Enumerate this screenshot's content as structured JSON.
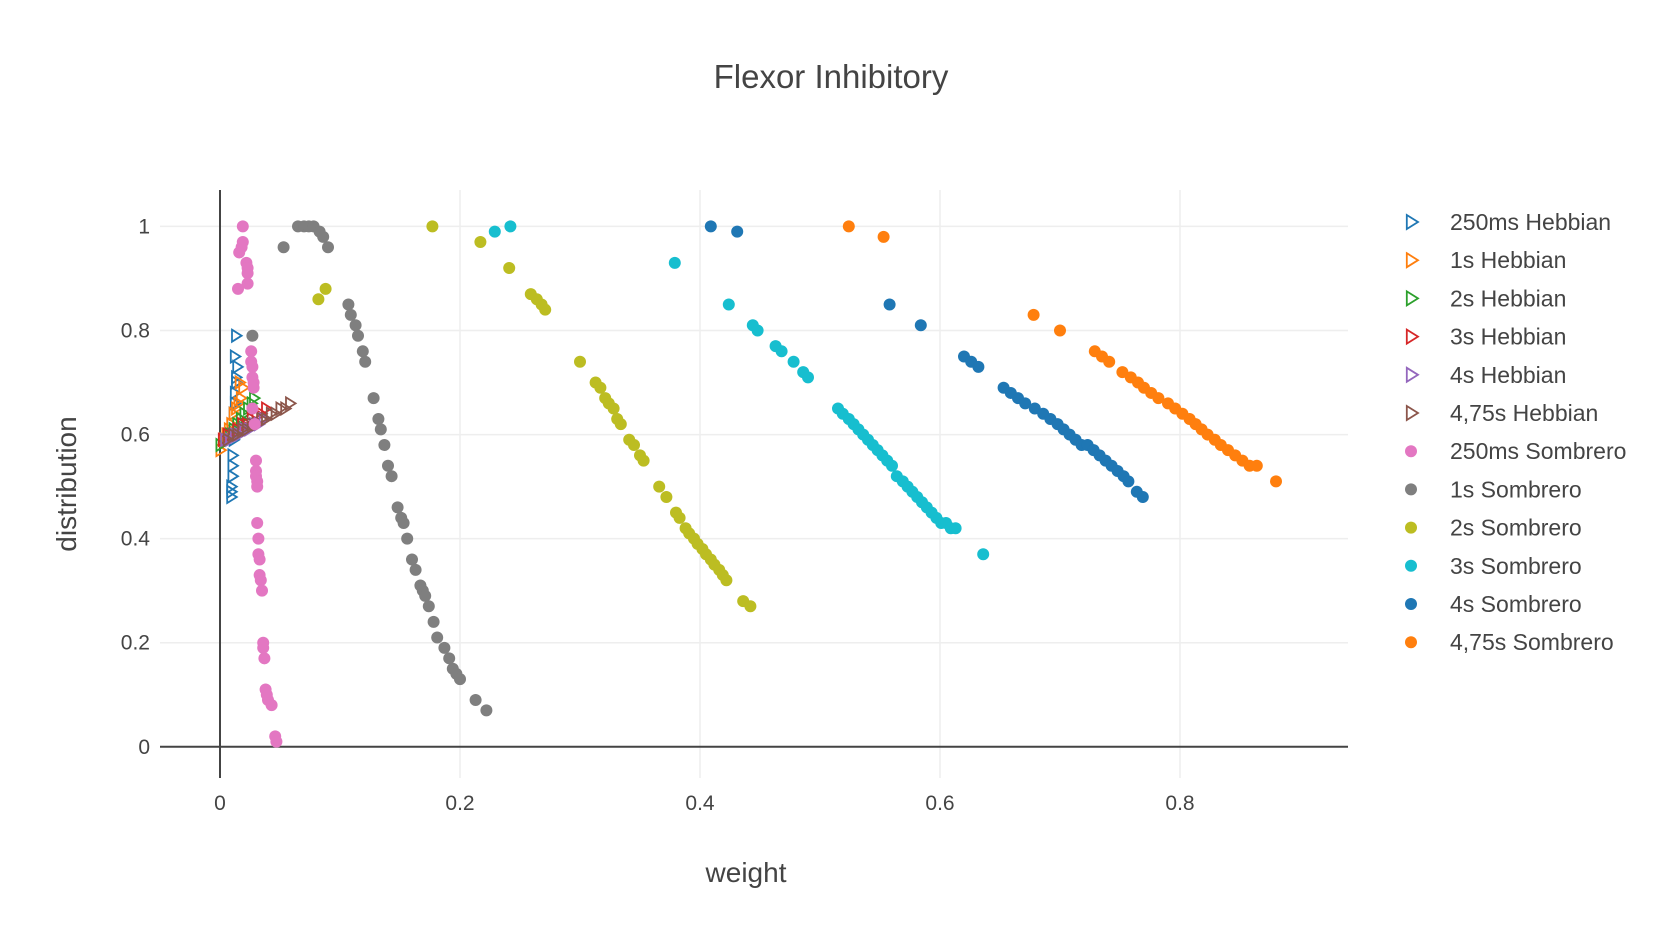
{
  "chart_data": {
    "type": "scatter",
    "title": "Flexor Inhibitory",
    "xlabel": "weight",
    "ylabel": "distribution",
    "xlim": [
      -0.05,
      0.94
    ],
    "ylim": [
      -0.06,
      1.07
    ],
    "xticks": [
      0,
      0.2,
      0.4,
      0.6,
      0.8
    ],
    "xtick_labels": [
      "0",
      "0.2",
      "0.4",
      "0.6",
      "0.8"
    ],
    "yticks": [
      0,
      0.2,
      0.4,
      0.6,
      0.8,
      1
    ],
    "ytick_labels": [
      "0",
      "0.2",
      "0.4",
      "0.6",
      "0.8",
      "1"
    ],
    "grid": true,
    "legend_position": "right",
    "series": [
      {
        "name": "250ms Hebbian",
        "marker": "triangle-right-open",
        "color": "#1f77b4",
        "x": [
          0.013,
          0.012,
          0.014,
          0.013,
          0.013,
          0.012,
          0.012,
          0.011,
          0.011,
          0.011,
          0.01,
          0.01,
          0.01,
          0.009,
          0.009,
          0.009
        ],
        "y": [
          0.79,
          0.75,
          0.73,
          0.71,
          0.7,
          0.68,
          0.66,
          0.64,
          0.61,
          0.59,
          0.56,
          0.54,
          0.52,
          0.5,
          0.49,
          0.48
        ]
      },
      {
        "name": "1s Hebbian",
        "marker": "triangle-right-open",
        "color": "#ff7f0e",
        "x": [
          0.0,
          0.003,
          0.005,
          0.007,
          0.009,
          0.011,
          0.013,
          0.015,
          0.017,
          0.019,
          0.016
        ],
        "y": [
          0.57,
          0.59,
          0.6,
          0.61,
          0.62,
          0.64,
          0.65,
          0.66,
          0.67,
          0.69,
          0.7
        ]
      },
      {
        "name": "2s Hebbian",
        "marker": "triangle-right-open",
        "color": "#2ca02c",
        "x": [
          0.0,
          0.004,
          0.008,
          0.011,
          0.014,
          0.017,
          0.02,
          0.023,
          0.026,
          0.028
        ],
        "y": [
          0.58,
          0.59,
          0.6,
          0.61,
          0.62,
          0.63,
          0.64,
          0.65,
          0.66,
          0.67
        ]
      },
      {
        "name": "3s Hebbian",
        "marker": "triangle-right-open",
        "color": "#d62728",
        "x": [
          0.002,
          0.006,
          0.01,
          0.014,
          0.018,
          0.022,
          0.026,
          0.03,
          0.034,
          0.038
        ],
        "y": [
          0.59,
          0.6,
          0.6,
          0.61,
          0.62,
          0.62,
          0.63,
          0.64,
          0.64,
          0.65
        ]
      },
      {
        "name": "4s Hebbian",
        "marker": "triangle-right-open",
        "color": "#9467bd",
        "x": [
          0.004,
          0.008,
          0.012,
          0.016,
          0.02,
          0.024,
          0.028,
          0.032,
          0.036
        ],
        "y": [
          0.59,
          0.59,
          0.6,
          0.6,
          0.61,
          0.61,
          0.62,
          0.62,
          0.63
        ]
      },
      {
        "name": "4,75s Hebbian",
        "marker": "triangle-right-open",
        "color": "#8c564b",
        "x": [
          0.006,
          0.01,
          0.014,
          0.018,
          0.022,
          0.026,
          0.03,
          0.034,
          0.038,
          0.042,
          0.046,
          0.05,
          0.054,
          0.058
        ],
        "y": [
          0.59,
          0.6,
          0.6,
          0.61,
          0.61,
          0.62,
          0.62,
          0.63,
          0.63,
          0.64,
          0.64,
          0.65,
          0.65,
          0.66
        ]
      },
      {
        "name": "250ms Sombrero",
        "marker": "circle",
        "color": "#e377c2",
        "x": [
          0.019,
          0.019,
          0.018,
          0.016,
          0.022,
          0.023,
          0.023,
          0.023,
          0.015,
          0.026,
          0.026,
          0.027,
          0.027,
          0.028,
          0.028,
          0.027,
          0.029,
          0.03,
          0.03,
          0.03,
          0.031,
          0.031,
          0.031,
          0.032,
          0.032,
          0.033,
          0.033,
          0.034,
          0.035,
          0.036,
          0.036,
          0.037,
          0.038,
          0.039,
          0.04,
          0.043,
          0.046,
          0.047
        ],
        "y": [
          1.0,
          0.97,
          0.96,
          0.95,
          0.93,
          0.92,
          0.91,
          0.89,
          0.88,
          0.76,
          0.74,
          0.73,
          0.71,
          0.7,
          0.69,
          0.65,
          0.62,
          0.55,
          0.53,
          0.52,
          0.51,
          0.5,
          0.43,
          0.4,
          0.37,
          0.36,
          0.33,
          0.32,
          0.3,
          0.2,
          0.19,
          0.17,
          0.11,
          0.1,
          0.09,
          0.08,
          0.02,
          0.01
        ]
      },
      {
        "name": "1s Sombrero",
        "marker": "circle",
        "color": "#7f7f7f",
        "x": [
          0.027,
          0.053,
          0.065,
          0.07,
          0.074,
          0.078,
          0.083,
          0.086,
          0.09,
          0.107,
          0.109,
          0.113,
          0.115,
          0.119,
          0.121,
          0.128,
          0.132,
          0.134,
          0.137,
          0.14,
          0.143,
          0.148,
          0.151,
          0.153,
          0.156,
          0.16,
          0.163,
          0.167,
          0.169,
          0.171,
          0.174,
          0.178,
          0.181,
          0.187,
          0.191,
          0.194,
          0.197,
          0.2,
          0.213,
          0.222
        ],
        "y": [
          0.79,
          0.96,
          1.0,
          1.0,
          1.0,
          1.0,
          0.99,
          0.98,
          0.96,
          0.85,
          0.83,
          0.81,
          0.79,
          0.76,
          0.74,
          0.67,
          0.63,
          0.61,
          0.58,
          0.54,
          0.52,
          0.46,
          0.44,
          0.43,
          0.4,
          0.36,
          0.34,
          0.31,
          0.3,
          0.29,
          0.27,
          0.24,
          0.21,
          0.19,
          0.17,
          0.15,
          0.14,
          0.13,
          0.09,
          0.07
        ]
      },
      {
        "name": "2s Sombrero",
        "marker": "circle",
        "color": "#bcbd22",
        "x": [
          0.177,
          0.217,
          0.241,
          0.082,
          0.088,
          0.259,
          0.264,
          0.268,
          0.271,
          0.3,
          0.313,
          0.317,
          0.321,
          0.324,
          0.328,
          0.331,
          0.334,
          0.341,
          0.345,
          0.35,
          0.353,
          0.366,
          0.372,
          0.38,
          0.383,
          0.388,
          0.391,
          0.395,
          0.398,
          0.402,
          0.405,
          0.409,
          0.412,
          0.416,
          0.419,
          0.422,
          0.436,
          0.442
        ],
        "y": [
          1.0,
          0.97,
          0.92,
          0.86,
          0.88,
          0.87,
          0.86,
          0.85,
          0.84,
          0.74,
          0.7,
          0.69,
          0.67,
          0.66,
          0.65,
          0.63,
          0.62,
          0.59,
          0.58,
          0.56,
          0.55,
          0.5,
          0.48,
          0.45,
          0.44,
          0.42,
          0.41,
          0.4,
          0.39,
          0.38,
          0.37,
          0.36,
          0.35,
          0.34,
          0.33,
          0.32,
          0.28,
          0.27
        ]
      },
      {
        "name": "3s Sombrero",
        "marker": "circle",
        "color": "#17becf",
        "x": [
          0.229,
          0.242,
          0.379,
          0.424,
          0.444,
          0.448,
          0.463,
          0.468,
          0.478,
          0.486,
          0.49,
          0.515,
          0.519,
          0.524,
          0.528,
          0.532,
          0.536,
          0.54,
          0.544,
          0.548,
          0.552,
          0.556,
          0.56,
          0.564,
          0.569,
          0.573,
          0.577,
          0.581,
          0.585,
          0.589,
          0.593,
          0.597,
          0.601,
          0.605,
          0.609,
          0.613,
          0.636
        ],
        "y": [
          0.99,
          1.0,
          0.93,
          0.85,
          0.81,
          0.8,
          0.77,
          0.76,
          0.74,
          0.72,
          0.71,
          0.65,
          0.64,
          0.63,
          0.62,
          0.61,
          0.6,
          0.59,
          0.58,
          0.57,
          0.56,
          0.55,
          0.54,
          0.52,
          0.51,
          0.5,
          0.49,
          0.48,
          0.47,
          0.46,
          0.45,
          0.44,
          0.43,
          0.43,
          0.42,
          0.42,
          0.37
        ]
      },
      {
        "name": "4s Sombrero",
        "marker": "circle",
        "color": "#1f77b4",
        "x": [
          0.409,
          0.431,
          0.558,
          0.584,
          0.62,
          0.626,
          0.632,
          0.653,
          0.659,
          0.665,
          0.671,
          0.679,
          0.686,
          0.692,
          0.698,
          0.703,
          0.708,
          0.713,
          0.718,
          0.723,
          0.728,
          0.733,
          0.738,
          0.743,
          0.748,
          0.753,
          0.757,
          0.764,
          0.769
        ],
        "y": [
          1.0,
          0.99,
          0.85,
          0.81,
          0.75,
          0.74,
          0.73,
          0.69,
          0.68,
          0.67,
          0.66,
          0.65,
          0.64,
          0.63,
          0.62,
          0.61,
          0.6,
          0.59,
          0.58,
          0.58,
          0.57,
          0.56,
          0.55,
          0.54,
          0.53,
          0.52,
          0.51,
          0.49,
          0.48
        ]
      },
      {
        "name": "4,75s Sombrero",
        "marker": "circle",
        "color": "#ff7f0e",
        "x": [
          0.524,
          0.553,
          0.678,
          0.7,
          0.729,
          0.735,
          0.741,
          0.752,
          0.759,
          0.765,
          0.77,
          0.776,
          0.782,
          0.79,
          0.796,
          0.802,
          0.808,
          0.813,
          0.818,
          0.823,
          0.829,
          0.834,
          0.84,
          0.846,
          0.852,
          0.858,
          0.864,
          0.88
        ],
        "y": [
          1.0,
          0.98,
          0.83,
          0.8,
          0.76,
          0.75,
          0.74,
          0.72,
          0.71,
          0.7,
          0.69,
          0.68,
          0.67,
          0.66,
          0.65,
          0.64,
          0.63,
          0.62,
          0.61,
          0.6,
          0.59,
          0.58,
          0.57,
          0.56,
          0.55,
          0.54,
          0.54,
          0.51
        ]
      }
    ]
  }
}
